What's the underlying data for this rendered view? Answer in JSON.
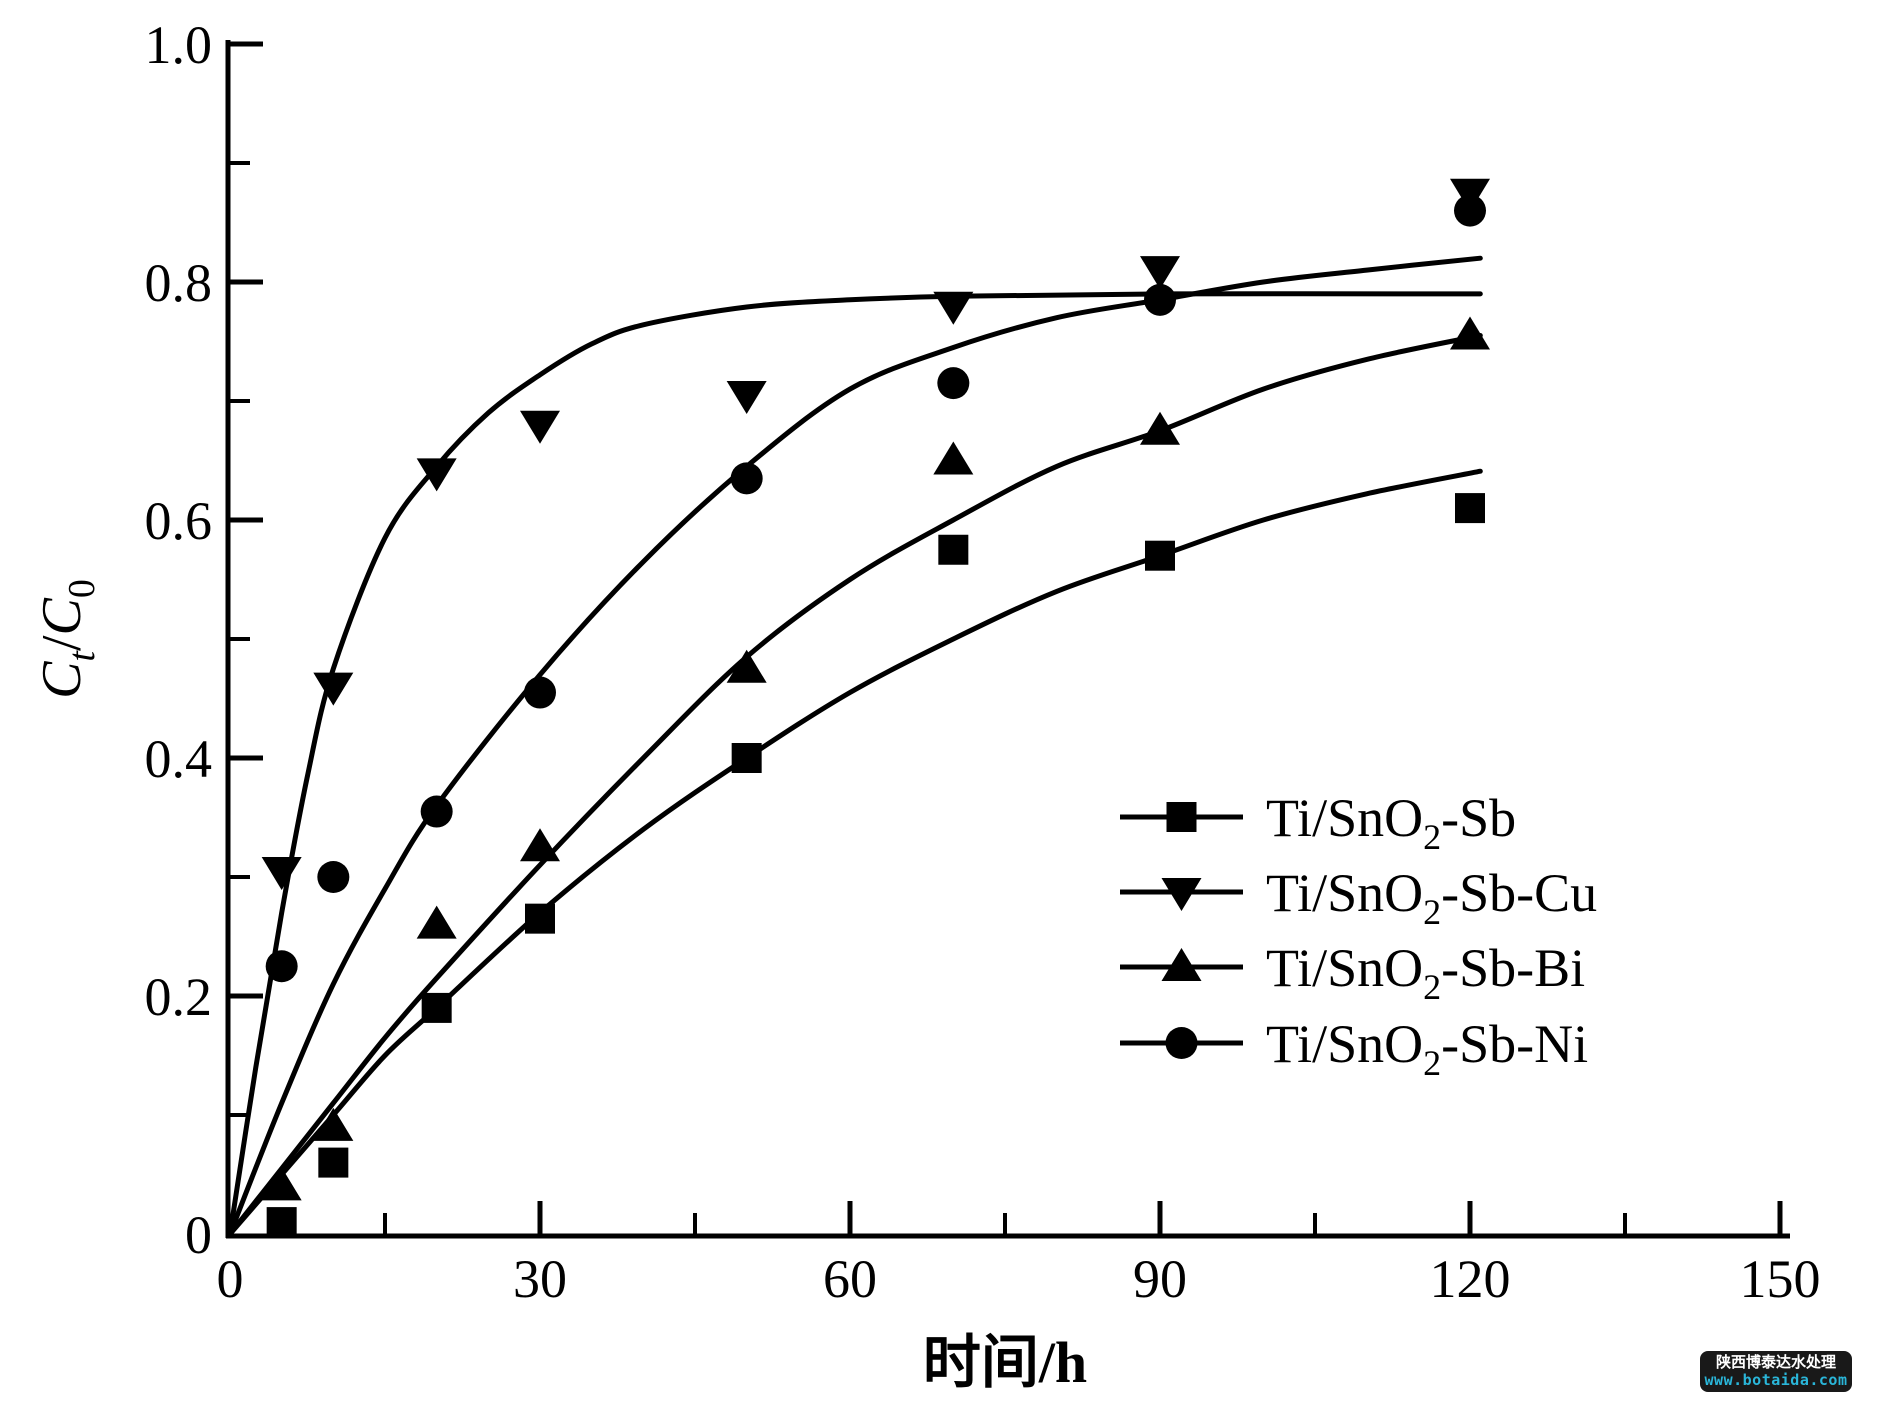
{
  "chart_data": {
    "type": "scatter",
    "title": "",
    "xlabel": "时间/h",
    "ylabel_plain": "Ct/C0",
    "ylabel_parts": [
      {
        "t": "C",
        "italic": true,
        "sub": false
      },
      {
        "t": "t",
        "italic": true,
        "sub": true
      },
      {
        "t": "/",
        "italic": false,
        "sub": false
      },
      {
        "t": "C",
        "italic": true,
        "sub": false
      },
      {
        "t": "0",
        "italic": false,
        "sub": true
      }
    ],
    "xlim": [
      0,
      150
    ],
    "ylim": [
      0,
      1.0
    ],
    "x_major_ticks": [
      0,
      30,
      60,
      90,
      120,
      150
    ],
    "x_minor_ticks": [
      15,
      45,
      75,
      105,
      135
    ],
    "y_major_ticks": [
      0,
      0.2,
      0.4,
      0.6,
      0.8,
      1.0
    ],
    "y_major_tick_labels": [
      "0",
      "0.2",
      "0.4",
      "0.6",
      "0.8",
      "1.0"
    ],
    "y_minor_ticks": [
      0.1,
      0.3,
      0.5,
      0.7,
      0.9
    ],
    "grid": false,
    "legend_position": "right-center",
    "x": [
      5,
      10,
      20,
      30,
      50,
      70,
      90,
      120
    ],
    "series": [
      {
        "name": "Ti/SnO2-Sb",
        "label_parts": {
          "pre": "Ti/SnO",
          "sub": "2",
          "post": "-Sb"
        },
        "marker": "square",
        "values": [
          0.01,
          0.06,
          0.19,
          0.265,
          0.4,
          0.575,
          0.57,
          0.61
        ],
        "fit": [
          [
            0,
            0
          ],
          [
            5,
            0.05
          ],
          [
            10,
            0.1
          ],
          [
            15,
            0.15
          ],
          [
            20,
            0.19
          ],
          [
            30,
            0.27
          ],
          [
            40,
            0.34
          ],
          [
            50,
            0.4
          ],
          [
            60,
            0.455
          ],
          [
            70,
            0.5
          ],
          [
            80,
            0.54
          ],
          [
            90,
            0.57
          ],
          [
            100,
            0.6
          ],
          [
            110,
            0.622
          ],
          [
            121,
            0.641
          ]
        ]
      },
      {
        "name": "Ti/SnO2-Sb-Cu",
        "label_parts": {
          "pre": "Ti/SnO",
          "sub": "2",
          "post": "-Sb-Cu"
        },
        "marker": "triangle-down",
        "values": [
          0.305,
          0.46,
          0.64,
          0.68,
          0.705,
          0.78,
          0.81,
          0.875
        ],
        "fit": [
          [
            0,
            0
          ],
          [
            2.5,
            0.14
          ],
          [
            5,
            0.27
          ],
          [
            7.5,
            0.385
          ],
          [
            10,
            0.475
          ],
          [
            15,
            0.585
          ],
          [
            20,
            0.645
          ],
          [
            25,
            0.69
          ],
          [
            30,
            0.722
          ],
          [
            35,
            0.748
          ],
          [
            40,
            0.764
          ],
          [
            50,
            0.779
          ],
          [
            60,
            0.785
          ],
          [
            70,
            0.788
          ],
          [
            90,
            0.79
          ],
          [
            121,
            0.79
          ]
        ]
      },
      {
        "name": "Ti/SnO2-Sb-Bi",
        "label_parts": {
          "pre": "Ti/SnO",
          "sub": "2",
          "post": "-Sb-Bi"
        },
        "marker": "triangle-up",
        "values": [
          0.04,
          0.09,
          0.26,
          0.325,
          0.475,
          0.65,
          0.675,
          0.755
        ],
        "fit": [
          [
            0,
            0
          ],
          [
            5,
            0.055
          ],
          [
            10,
            0.11
          ],
          [
            15,
            0.165
          ],
          [
            20,
            0.215
          ],
          [
            30,
            0.31
          ],
          [
            40,
            0.4
          ],
          [
            50,
            0.485
          ],
          [
            60,
            0.55
          ],
          [
            70,
            0.6
          ],
          [
            80,
            0.645
          ],
          [
            90,
            0.675
          ],
          [
            100,
            0.71
          ],
          [
            110,
            0.735
          ],
          [
            121,
            0.755
          ]
        ]
      },
      {
        "name": "Ti/SnO2-Sb-Ni",
        "label_parts": {
          "pre": "Ti/SnO",
          "sub": "2",
          "post": "-Sb-Ni"
        },
        "marker": "circle",
        "values": [
          0.225,
          0.3,
          0.355,
          0.455,
          0.635,
          0.715,
          0.785,
          0.86
        ],
        "fit": [
          [
            0,
            0
          ],
          [
            5,
            0.11
          ],
          [
            10,
            0.21
          ],
          [
            15,
            0.29
          ],
          [
            20,
            0.36
          ],
          [
            30,
            0.47
          ],
          [
            40,
            0.565
          ],
          [
            50,
            0.645
          ],
          [
            60,
            0.71
          ],
          [
            70,
            0.745
          ],
          [
            80,
            0.77
          ],
          [
            90,
            0.785
          ],
          [
            100,
            0.8
          ],
          [
            110,
            0.81
          ],
          [
            121,
            0.82
          ]
        ]
      }
    ],
    "colors": {
      "ink": "#000000",
      "background": "#ffffff"
    }
  },
  "watermark": {
    "line1": "陕西博泰达水处理",
    "line2": "www.botaida.com",
    "bg": "#191919",
    "line1_color": "#ffffff",
    "line2_color": "#2ab6d9"
  }
}
